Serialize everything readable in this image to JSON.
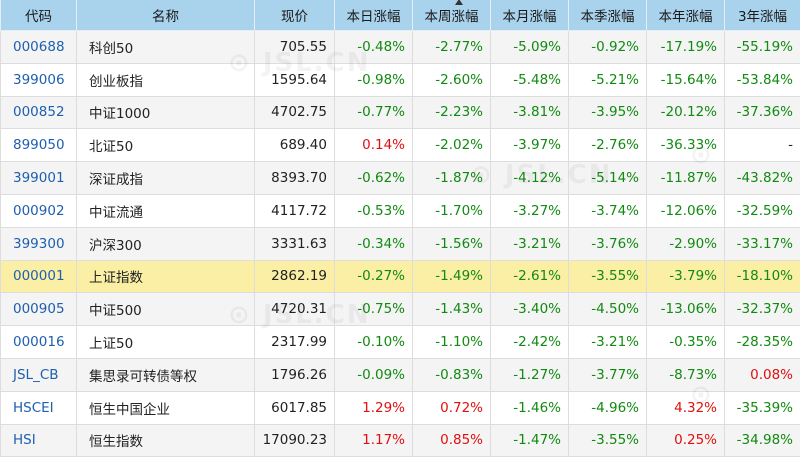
{
  "headers": [
    "代码",
    "名称",
    "现价",
    "本日涨幅",
    "本周涨幅",
    "本月涨幅",
    "本季涨幅",
    "本年涨幅",
    "3年涨幅"
  ],
  "rows": [
    {
      "code": "000688",
      "name": "科创50",
      "price": "705.55",
      "d": "-0.48%",
      "w": "-2.77%",
      "m": "-5.09%",
      "q": "-0.92%",
      "y": "-17.19%",
      "y3": "-55.19%"
    },
    {
      "code": "399006",
      "name": "创业板指",
      "price": "1595.64",
      "d": "-0.98%",
      "w": "-2.60%",
      "m": "-5.48%",
      "q": "-5.21%",
      "y": "-15.64%",
      "y3": "-53.84%"
    },
    {
      "code": "000852",
      "name": "中证1000",
      "price": "4702.75",
      "d": "-0.77%",
      "w": "-2.23%",
      "m": "-3.81%",
      "q": "-3.95%",
      "y": "-20.12%",
      "y3": "-37.36%"
    },
    {
      "code": "899050",
      "name": "北证50",
      "price": "689.40",
      "d": "0.14%",
      "w": "-2.02%",
      "m": "-3.97%",
      "q": "-2.76%",
      "y": "-36.33%",
      "y3": "-"
    },
    {
      "code": "399001",
      "name": "深证成指",
      "price": "8393.70",
      "d": "-0.62%",
      "w": "-1.87%",
      "m": "-4.12%",
      "q": "-5.14%",
      "y": "-11.87%",
      "y3": "-43.82%"
    },
    {
      "code": "000902",
      "name": "中证流通",
      "price": "4117.72",
      "d": "-0.53%",
      "w": "-1.70%",
      "m": "-3.27%",
      "q": "-3.74%",
      "y": "-12.06%",
      "y3": "-32.59%"
    },
    {
      "code": "399300",
      "name": "沪深300",
      "price": "3331.63",
      "d": "-0.34%",
      "w": "-1.56%",
      "m": "-3.21%",
      "q": "-3.76%",
      "y": "-2.90%",
      "y3": "-33.17%"
    },
    {
      "code": "000001",
      "name": "上证指数",
      "price": "2862.19",
      "d": "-0.27%",
      "w": "-1.49%",
      "m": "-2.61%",
      "q": "-3.55%",
      "y": "-3.79%",
      "y3": "-18.10%",
      "highlight": true
    },
    {
      "code": "000905",
      "name": "中证500",
      "price": "4720.31",
      "d": "-0.75%",
      "w": "-1.43%",
      "m": "-3.40%",
      "q": "-4.50%",
      "y": "-13.06%",
      "y3": "-32.37%"
    },
    {
      "code": "000016",
      "name": "上证50",
      "price": "2317.99",
      "d": "-0.10%",
      "w": "-1.10%",
      "m": "-2.42%",
      "q": "-3.21%",
      "y": "-0.35%",
      "y3": "-28.35%"
    },
    {
      "code": "JSL_CB",
      "name": "集思录可转债等权",
      "price": "1796.26",
      "d": "-0.09%",
      "w": "-0.83%",
      "m": "-1.27%",
      "q": "-3.77%",
      "y": "-8.73%",
      "y3": "0.08%"
    },
    {
      "code": "HSCEI",
      "name": "恒生中国企业",
      "price": "6017.85",
      "d": "1.29%",
      "w": "0.72%",
      "m": "-1.46%",
      "q": "-4.96%",
      "y": "4.32%",
      "y3": "-35.39%"
    },
    {
      "code": "HSI",
      "name": "恒生指数",
      "price": "17090.23",
      "d": "1.17%",
      "w": "0.85%",
      "m": "-1.47%",
      "q": "-3.55%",
      "y": "0.25%",
      "y3": "-34.98%"
    }
  ],
  "colors": {
    "up": "#e01010",
    "down": "#118a11",
    "header_bg": "#a9d2ec",
    "highlight_bg": "#faefa4",
    "code": "#1e5fae"
  },
  "sorted_column": "本周涨幅",
  "sort_icon": "sort-ascending-icon"
}
